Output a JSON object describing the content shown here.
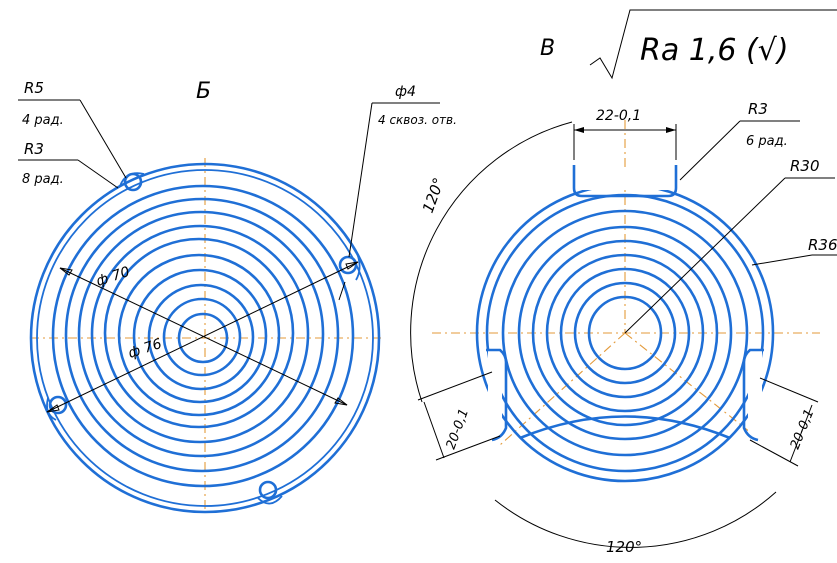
{
  "colors": {
    "part": "#1f6fd6",
    "axis": "#e39a3a",
    "dimension": "#000000"
  },
  "roughness": {
    "letter": "В",
    "value": "Ra 1,6 (√)"
  },
  "view_left": {
    "title": "Б",
    "r5": {
      "value": "R5",
      "note": "4 рад."
    },
    "r3": {
      "value": "R3",
      "note": "8 рад."
    },
    "phi4": {
      "value": "ф4",
      "note": "4 сквоз. отв."
    },
    "dia70": "ф 70",
    "dia76": "ф 76"
  },
  "view_right": {
    "slot_width": "22-0,1",
    "r3": {
      "value": "R3",
      "note": "6 рад."
    },
    "r30": "R30",
    "r36": "R36",
    "angle_top": "120°",
    "angle_bottom": "120°",
    "width_left": "20-0,1",
    "width_right": "20-0,1"
  }
}
